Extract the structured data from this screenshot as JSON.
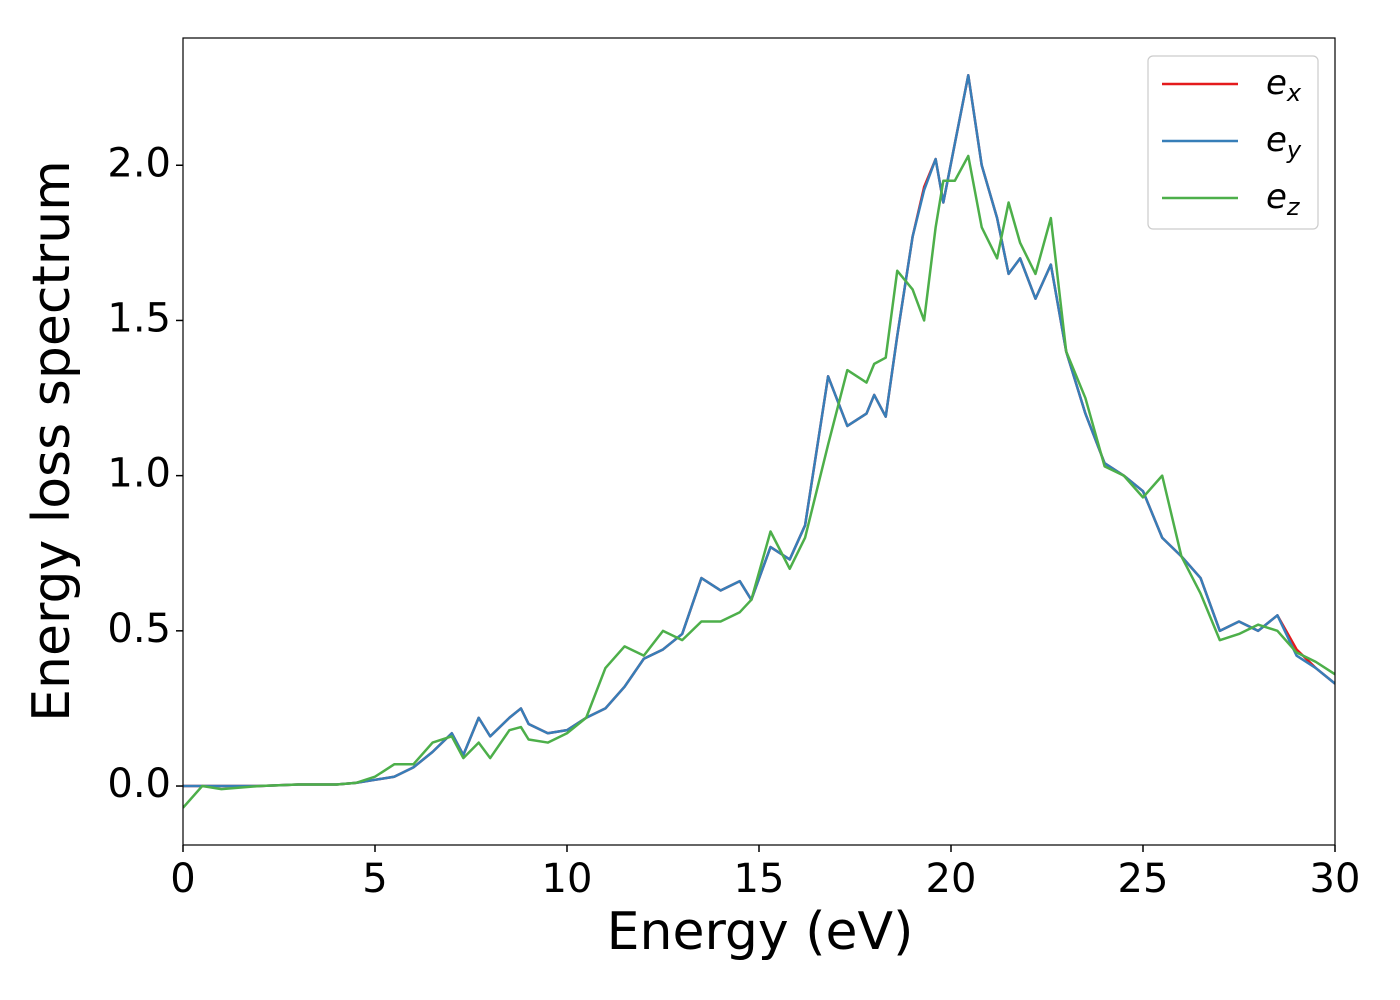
{
  "chart_data": {
    "type": "line",
    "xlabel": "Energy (eV)",
    "ylabel": "Energy loss spectrum",
    "x": [
      0,
      0.5,
      1,
      2,
      3,
      4,
      4.5,
      5,
      5.5,
      6,
      6.5,
      7,
      7.3,
      7.7,
      8,
      8.5,
      8.8,
      9,
      9.5,
      10,
      10.5,
      11,
      11.5,
      12,
      12.5,
      13,
      13.5,
      14,
      14.5,
      14.8,
      15.3,
      15.8,
      16.2,
      16.8,
      17.3,
      17.8,
      18,
      18.3,
      18.6,
      19,
      19.3,
      19.6,
      19.8,
      20.1,
      20.45,
      20.8,
      21.2,
      21.5,
      21.8,
      22.2,
      22.6,
      23,
      23.5,
      24,
      24.5,
      25,
      25.5,
      26,
      26.5,
      27,
      27.5,
      28,
      28.5,
      29,
      29.5,
      30
    ],
    "series": [
      {
        "name": "e_x",
        "color": "#e41a1c",
        "values": [
          0,
          0,
          0,
          0,
          0.005,
          0.005,
          0.01,
          0.02,
          0.03,
          0.06,
          0.11,
          0.17,
          0.1,
          0.22,
          0.16,
          0.22,
          0.25,
          0.2,
          0.17,
          0.18,
          0.22,
          0.25,
          0.32,
          0.41,
          0.44,
          0.49,
          0.67,
          0.63,
          0.66,
          0.6,
          0.77,
          0.73,
          0.84,
          1.32,
          1.16,
          1.2,
          1.26,
          1.19,
          1.45,
          1.77,
          1.93,
          2.02,
          1.88,
          2.07,
          2.29,
          2.0,
          1.83,
          1.65,
          1.7,
          1.57,
          1.68,
          1.4,
          1.2,
          1.04,
          1.0,
          0.95,
          0.8,
          0.74,
          0.67,
          0.5,
          0.53,
          0.5,
          0.55,
          0.44,
          0.38,
          0.33
        ]
      },
      {
        "name": "e_y",
        "color": "#377eb8",
        "values": [
          0,
          0,
          0,
          0,
          0.005,
          0.005,
          0.01,
          0.02,
          0.03,
          0.06,
          0.11,
          0.17,
          0.1,
          0.22,
          0.16,
          0.22,
          0.25,
          0.2,
          0.17,
          0.18,
          0.22,
          0.25,
          0.32,
          0.41,
          0.44,
          0.49,
          0.67,
          0.63,
          0.66,
          0.6,
          0.77,
          0.73,
          0.84,
          1.32,
          1.16,
          1.2,
          1.26,
          1.19,
          1.45,
          1.77,
          1.92,
          2.02,
          1.88,
          2.07,
          2.29,
          2.0,
          1.83,
          1.65,
          1.7,
          1.57,
          1.68,
          1.4,
          1.2,
          1.04,
          1.0,
          0.95,
          0.8,
          0.74,
          0.67,
          0.5,
          0.53,
          0.5,
          0.55,
          0.42,
          0.38,
          0.33
        ]
      },
      {
        "name": "e_z",
        "color": "#4daf4a",
        "values": [
          -0.07,
          0.0,
          -0.01,
          0,
          0.005,
          0.005,
          0.01,
          0.03,
          0.07,
          0.07,
          0.14,
          0.16,
          0.09,
          0.14,
          0.09,
          0.18,
          0.19,
          0.15,
          0.14,
          0.17,
          0.22,
          0.38,
          0.45,
          0.42,
          0.5,
          0.47,
          0.53,
          0.53,
          0.56,
          0.6,
          0.82,
          0.7,
          0.8,
          1.1,
          1.34,
          1.3,
          1.36,
          1.38,
          1.66,
          1.6,
          1.5,
          1.8,
          1.95,
          1.95,
          2.03,
          1.8,
          1.7,
          1.88,
          1.75,
          1.65,
          1.83,
          1.4,
          1.25,
          1.03,
          1.0,
          0.93,
          1.0,
          0.74,
          0.62,
          0.47,
          0.49,
          0.52,
          0.5,
          0.43,
          0.4,
          0.36
        ]
      }
    ],
    "xlim": [
      0,
      30
    ],
    "ylim": [
      -0.19,
      2.41
    ],
    "xticks": [
      0,
      5,
      10,
      15,
      20,
      25,
      30
    ],
    "yticks": [
      {
        "value": 0,
        "label": "0.0"
      },
      0.5,
      {
        "value": 1,
        "label": "1.0"
      },
      1.5,
      {
        "value": 2,
        "label": "2.0"
      }
    ],
    "grid": false,
    "legend": "upper right"
  }
}
